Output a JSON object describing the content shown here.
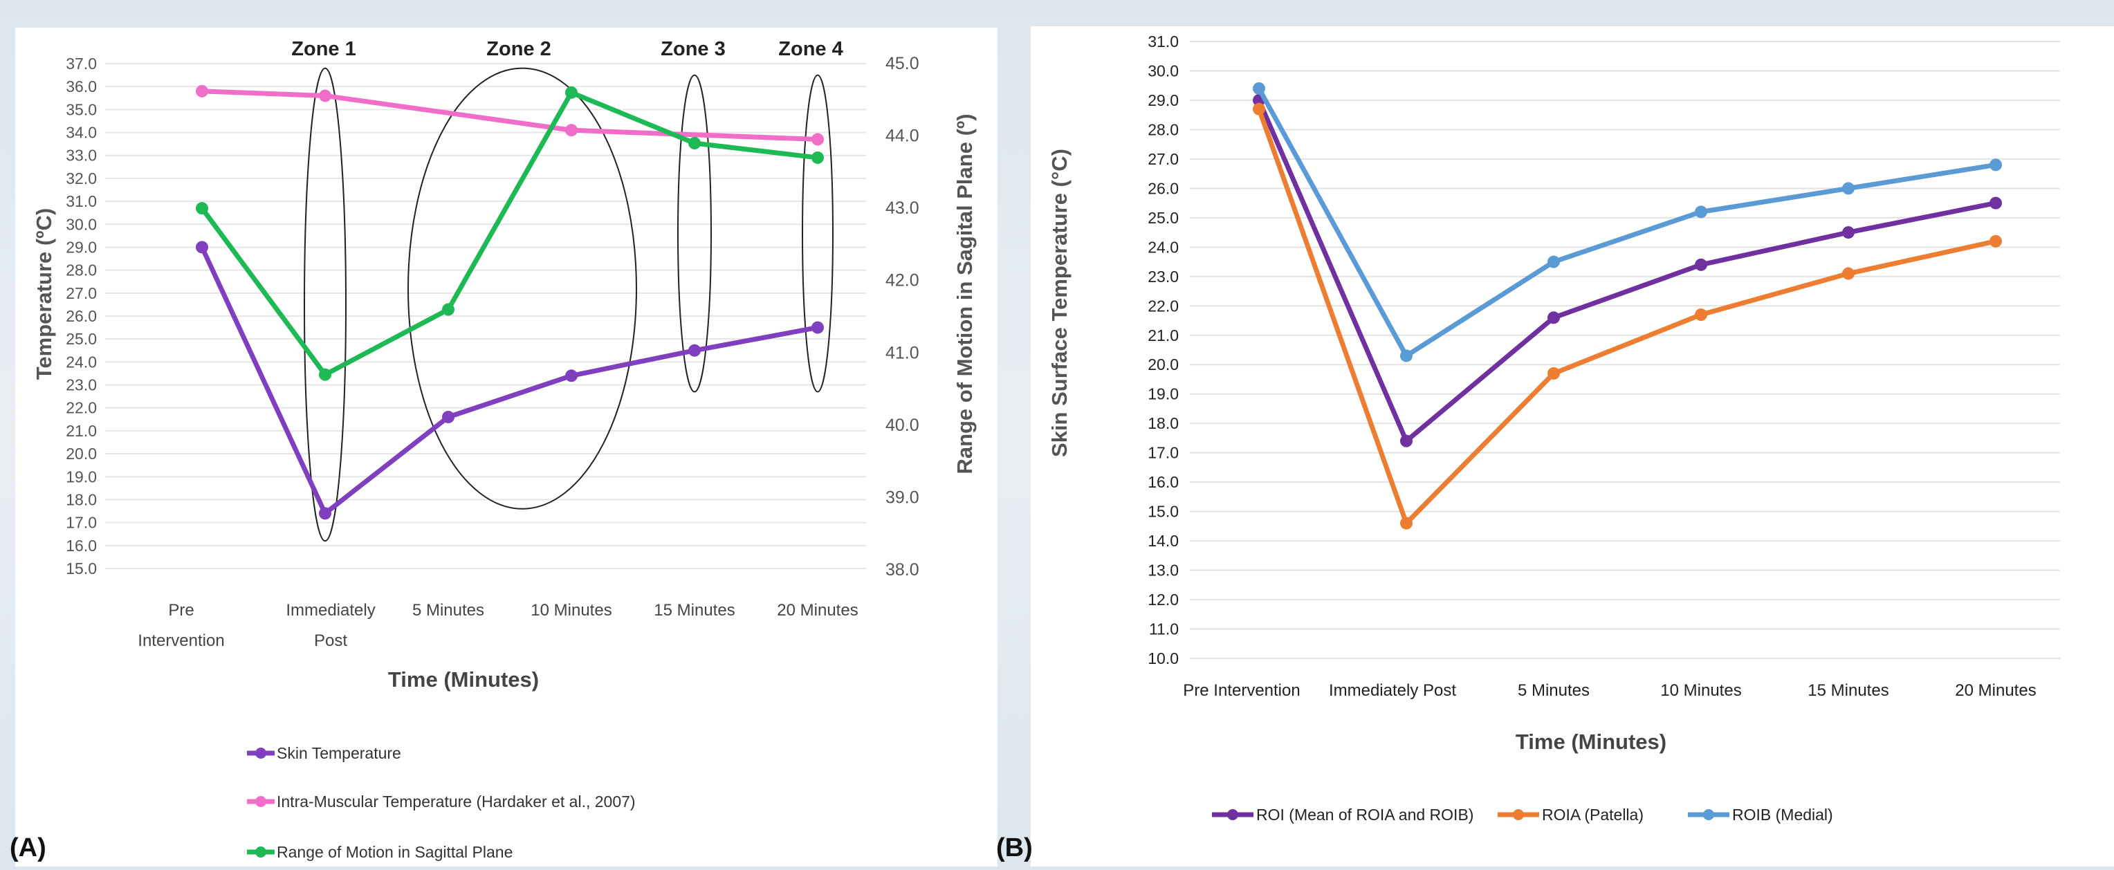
{
  "panels": {
    "a_label": "(A)",
    "b_label": "(B)"
  },
  "chart_data": [
    {
      "type": "line",
      "categories": [
        "Pre Intervention",
        "Immediately Post",
        "5 Minutes",
        "10 Minutes",
        "15 Minutes",
        "20 Minutes"
      ],
      "category_lines": [
        [
          "Pre",
          "Intervention"
        ],
        [
          "Immediately",
          "Post"
        ],
        [
          "5 Minutes"
        ],
        [
          "10 Minutes"
        ],
        [
          "15 Minutes"
        ],
        [
          "20 Minutes"
        ]
      ],
      "xlabel": "Time (Minutes)",
      "ylabel": "Temperature (ºC)",
      "y2label": "Range of Motion in Sagital Plane (º)",
      "ylim": [
        15.0,
        37.0
      ],
      "y2lim": [
        38.0,
        45.0
      ],
      "yticks": [
        "15.0",
        "16.0",
        "17.0",
        "18.0",
        "19.0",
        "20.0",
        "21.0",
        "22.0",
        "23.0",
        "24.0",
        "25.0",
        "26.0",
        "27.0",
        "28.0",
        "29.0",
        "30.0",
        "31.0",
        "32.0",
        "33.0",
        "34.0",
        "35.0",
        "36.0",
        "37.0"
      ],
      "y2ticks": [
        "38.0",
        "39.0",
        "40.0",
        "41.0",
        "42.0",
        "43.0",
        "44.0",
        "45.0"
      ],
      "grid": true,
      "legend_position": "bottom",
      "series": [
        {
          "name": "Skin Temperature",
          "axis": "left",
          "color": "#7f3fbf",
          "values": [
            29.0,
            17.4,
            21.6,
            23.4,
            24.5,
            25.5
          ]
        },
        {
          "name": "Intra-Muscular Temperature (Hardaker et al., 2007)",
          "axis": "left",
          "color": "#f06ec8",
          "values": [
            35.8,
            35.6,
            null,
            34.1,
            null,
            33.7
          ]
        },
        {
          "name": "Range of Motion in Sagittal Plane",
          "axis": "right",
          "color": "#1db954",
          "values": [
            43.0,
            40.7,
            41.6,
            44.6,
            43.9,
            43.7
          ]
        }
      ],
      "annotations": [
        {
          "text": "Zone 1",
          "category": 1
        },
        {
          "text": "Zone 2",
          "category": 2.5
        },
        {
          "text": "Zone 3",
          "category": 4
        },
        {
          "text": "Zone 4",
          "category": 5
        }
      ]
    },
    {
      "type": "line",
      "categories": [
        "Pre Intervention",
        "Immediately Post",
        "5 Minutes",
        "10 Minutes",
        "15 Minutes",
        "20 Minutes"
      ],
      "xlabel": "Time (Minutes)",
      "ylabel": "Skin Surface Temperature (°C)",
      "ylim": [
        10.0,
        31.0
      ],
      "yticks": [
        "10.0",
        "11.0",
        "12.0",
        "13.0",
        "14.0",
        "15.0",
        "16.0",
        "17.0",
        "18.0",
        "19.0",
        "20.0",
        "21.0",
        "22.0",
        "23.0",
        "24.0",
        "25.0",
        "26.0",
        "27.0",
        "28.0",
        "29.0",
        "30.0",
        "31.0"
      ],
      "grid": true,
      "legend_position": "bottom",
      "series": [
        {
          "name": "ROI (Mean of ROIA and ROIB)",
          "color": "#7030a0",
          "values": [
            29.0,
            17.4,
            21.6,
            23.4,
            24.5,
            25.5
          ]
        },
        {
          "name": "ROIA (Patella)",
          "color": "#ed7d31",
          "values": [
            28.7,
            14.6,
            19.7,
            21.7,
            23.1,
            24.2
          ]
        },
        {
          "name": "ROIB (Medial)",
          "color": "#5b9bd5",
          "values": [
            29.4,
            20.3,
            23.5,
            25.2,
            26.0,
            26.8
          ]
        }
      ]
    }
  ]
}
